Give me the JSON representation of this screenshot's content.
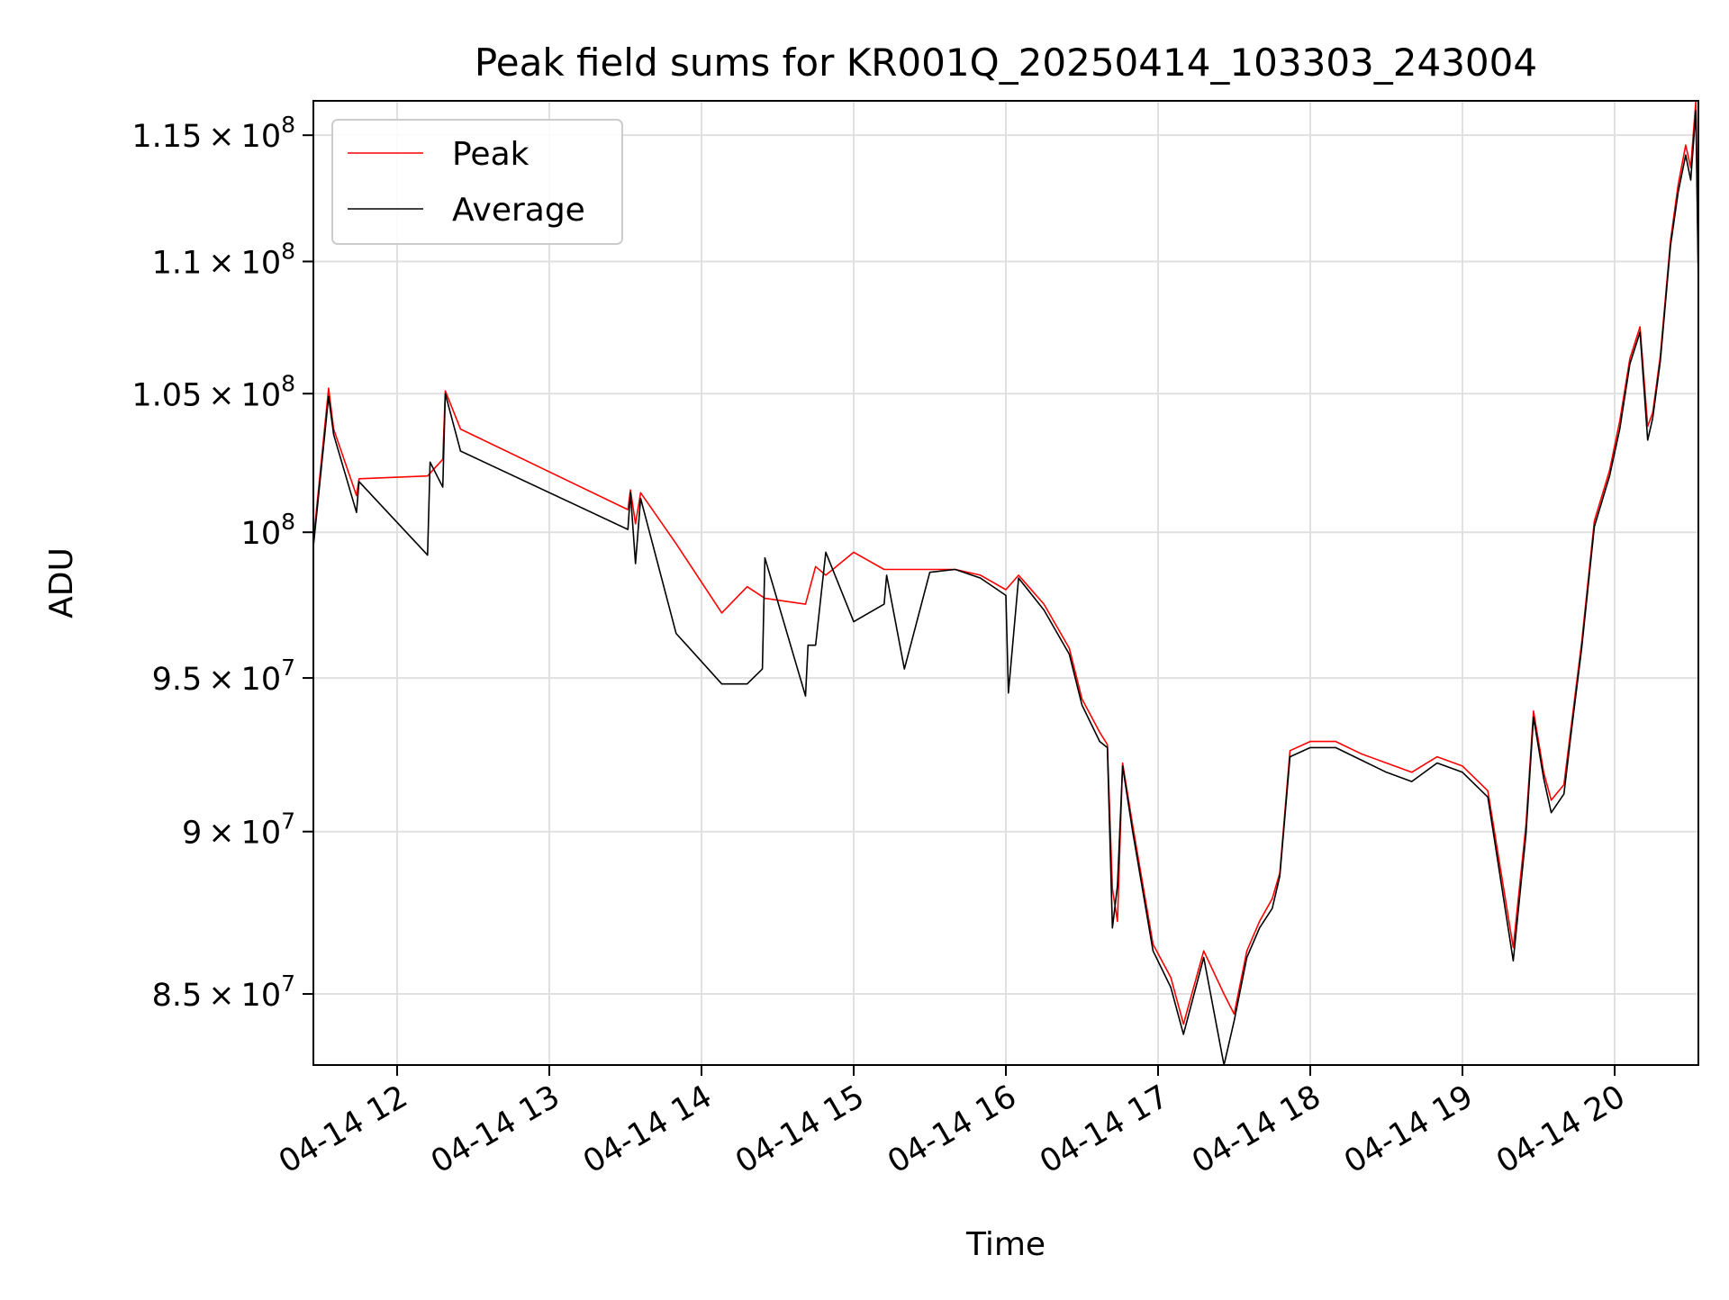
{
  "chart_data": {
    "type": "line",
    "title": "Peak field sums for KR001Q_20250414_103303_243004",
    "xlabel": "Time",
    "ylabel": "ADU",
    "xlim": [
      "2025-04-14 11:27",
      "2025-04-14 20:33"
    ],
    "ylim": [
      82900000,
      116400000
    ],
    "y_scale": "log",
    "grid": true,
    "legend": "top-left",
    "x_tick_labels": [
      "04-14 12",
      "04-14 13",
      "04-14 14",
      "04-14 15",
      "04-14 16",
      "04-14 17",
      "04-14 18",
      "04-14 19",
      "04-14 20"
    ],
    "x_tick_times": [
      "2025-04-14 12:00",
      "2025-04-14 13:00",
      "2025-04-14 14:00",
      "2025-04-14 15:00",
      "2025-04-14 16:00",
      "2025-04-14 17:00",
      "2025-04-14 18:00",
      "2025-04-14 19:00",
      "2025-04-14 20:00"
    ],
    "y_ticks": [
      {
        "value": 85000000,
        "mantissa": "8.5",
        "exponent": "7"
      },
      {
        "value": 90000000,
        "mantissa": "9",
        "exponent": "7"
      },
      {
        "value": 95000000,
        "mantissa": "9.5",
        "exponent": "7"
      },
      {
        "value": 100000000,
        "mantissa": "",
        "exponent": "8"
      },
      {
        "value": 105000000,
        "mantissa": "1.05",
        "exponent": "8"
      },
      {
        "value": 110000000,
        "mantissa": "1.1",
        "exponent": "8"
      },
      {
        "value": 115000000,
        "mantissa": "1.15",
        "exponent": "8"
      }
    ],
    "series": [
      {
        "name": "Peak",
        "color": "#ff0000",
        "x": [
          "2025-04-14 11:27",
          "2025-04-14 11:33",
          "2025-04-14 11:35",
          "2025-04-14 11:44",
          "2025-04-14 11:45",
          "2025-04-14 12:12",
          "2025-04-14 12:18",
          "2025-04-14 12:19",
          "2025-04-14 12:25",
          "2025-04-14 13:31",
          "2025-04-14 13:32",
          "2025-04-14 13:34",
          "2025-04-14 13:36",
          "2025-04-14 13:50",
          "2025-04-14 14:08",
          "2025-04-14 14:18",
          "2025-04-14 14:25",
          "2025-04-14 14:41",
          "2025-04-14 14:45",
          "2025-04-14 14:49",
          "2025-04-14 15:00",
          "2025-04-14 15:12",
          "2025-04-14 15:13",
          "2025-04-14 15:20",
          "2025-04-14 15:30",
          "2025-04-14 15:40",
          "2025-04-14 15:50",
          "2025-04-14 16:00",
          "2025-04-14 16:05",
          "2025-04-14 16:15",
          "2025-04-14 16:25",
          "2025-04-14 16:30",
          "2025-04-14 16:37",
          "2025-04-14 16:40",
          "2025-04-14 16:42",
          "2025-04-14 16:44",
          "2025-04-14 16:46",
          "2025-04-14 16:50",
          "2025-04-14 16:58",
          "2025-04-14 17:05",
          "2025-04-14 17:10",
          "2025-04-14 17:18",
          "2025-04-14 17:26",
          "2025-04-14 17:30",
          "2025-04-14 17:35",
          "2025-04-14 17:40",
          "2025-04-14 17:45",
          "2025-04-14 17:48",
          "2025-04-14 17:52",
          "2025-04-14 18:00",
          "2025-04-14 18:10",
          "2025-04-14 18:20",
          "2025-04-14 18:30",
          "2025-04-14 18:40",
          "2025-04-14 18:50",
          "2025-04-14 19:00",
          "2025-04-14 19:10",
          "2025-04-14 19:20",
          "2025-04-14 19:25",
          "2025-04-14 19:28",
          "2025-04-14 19:32",
          "2025-04-14 19:35",
          "2025-04-14 19:40",
          "2025-04-14 19:43",
          "2025-04-14 19:47",
          "2025-04-14 19:52",
          "2025-04-14 19:58",
          "2025-04-14 20:02",
          "2025-04-14 20:06",
          "2025-04-14 20:10",
          "2025-04-14 20:13",
          "2025-04-14 20:15",
          "2025-04-14 20:18",
          "2025-04-14 20:22",
          "2025-04-14 20:25",
          "2025-04-14 20:28",
          "2025-04-14 20:30",
          "2025-04-14 20:32",
          "2025-04-14 20:33"
        ],
        "y": [
          99700000,
          105200000,
          103700000,
          101300000,
          101900000,
          102000000,
          102600000,
          105100000,
          103700000,
          100800000,
          101500000,
          100300000,
          101400000,
          99600000,
          97200000,
          98100000,
          97700000,
          97500000,
          98800000,
          98500000,
          99300000,
          98700000,
          98700000,
          98700000,
          98700000,
          98700000,
          98500000,
          98000000,
          98500000,
          97500000,
          96000000,
          94300000,
          93200000,
          92800000,
          88200000,
          87200000,
          92200000,
          90200000,
          86500000,
          85500000,
          84100000,
          86300000,
          85000000,
          84400000,
          86300000,
          87200000,
          87900000,
          88700000,
          92600000,
          92900000,
          92900000,
          92500000,
          92200000,
          91900000,
          92400000,
          92100000,
          91300000,
          86400000,
          90200000,
          93900000,
          91900000,
          91000000,
          91500000,
          93500000,
          96200000,
          100400000,
          102200000,
          104000000,
          106300000,
          107500000,
          103800000,
          104300000,
          106400000,
          110800000,
          113000000,
          114600000,
          113700000,
          116400000,
          109400000
        ]
      },
      {
        "name": "Average",
        "color": "#000000",
        "x": [
          "2025-04-14 11:27",
          "2025-04-14 11:33",
          "2025-04-14 11:35",
          "2025-04-14 11:44",
          "2025-04-14 11:45",
          "2025-04-14 12:12",
          "2025-04-14 12:13",
          "2025-04-14 12:18",
          "2025-04-14 12:19",
          "2025-04-14 12:25",
          "2025-04-14 13:31",
          "2025-04-14 13:32",
          "2025-04-14 13:34",
          "2025-04-14 13:36",
          "2025-04-14 13:50",
          "2025-04-14 14:08",
          "2025-04-14 14:18",
          "2025-04-14 14:24",
          "2025-04-14 14:25",
          "2025-04-14 14:41",
          "2025-04-14 14:42",
          "2025-04-14 14:45",
          "2025-04-14 14:49",
          "2025-04-14 15:00",
          "2025-04-14 15:12",
          "2025-04-14 15:13",
          "2025-04-14 15:20",
          "2025-04-14 15:30",
          "2025-04-14 15:40",
          "2025-04-14 15:50",
          "2025-04-14 16:00",
          "2025-04-14 16:01",
          "2025-04-14 16:05",
          "2025-04-14 16:15",
          "2025-04-14 16:25",
          "2025-04-14 16:30",
          "2025-04-14 16:37",
          "2025-04-14 16:40",
          "2025-04-14 16:42",
          "2025-04-14 16:44",
          "2025-04-14 16:46",
          "2025-04-14 16:50",
          "2025-04-14 16:58",
          "2025-04-14 17:05",
          "2025-04-14 17:10",
          "2025-04-14 17:18",
          "2025-04-14 17:26",
          "2025-04-14 17:30",
          "2025-04-14 17:35",
          "2025-04-14 17:40",
          "2025-04-14 17:45",
          "2025-04-14 17:48",
          "2025-04-14 17:52",
          "2025-04-14 18:00",
          "2025-04-14 18:10",
          "2025-04-14 18:20",
          "2025-04-14 18:30",
          "2025-04-14 18:40",
          "2025-04-14 18:50",
          "2025-04-14 19:00",
          "2025-04-14 19:10",
          "2025-04-14 19:20",
          "2025-04-14 19:25",
          "2025-04-14 19:28",
          "2025-04-14 19:32",
          "2025-04-14 19:35",
          "2025-04-14 19:40",
          "2025-04-14 19:43",
          "2025-04-14 19:47",
          "2025-04-14 19:52",
          "2025-04-14 19:58",
          "2025-04-14 20:02",
          "2025-04-14 20:06",
          "2025-04-14 20:10",
          "2025-04-14 20:13",
          "2025-04-14 20:15",
          "2025-04-14 20:18",
          "2025-04-14 20:22",
          "2025-04-14 20:25",
          "2025-04-14 20:28",
          "2025-04-14 20:30",
          "2025-04-14 20:32",
          "2025-04-14 20:33"
        ],
        "y": [
          99500000,
          104900000,
          103500000,
          100700000,
          101800000,
          99200000,
          102500000,
          101600000,
          105000000,
          102900000,
          100100000,
          101400000,
          98900000,
          101200000,
          96500000,
          94800000,
          94800000,
          95300000,
          99100000,
          94400000,
          96100000,
          96100000,
          99300000,
          96900000,
          97500000,
          98500000,
          95300000,
          98600000,
          98700000,
          98400000,
          97800000,
          94500000,
          98400000,
          97300000,
          95800000,
          94100000,
          92900000,
          92700000,
          87000000,
          88300000,
          92100000,
          90000000,
          86300000,
          85200000,
          83800000,
          86100000,
          82900000,
          84200000,
          86100000,
          87000000,
          87600000,
          88600000,
          92400000,
          92700000,
          92700000,
          92300000,
          91900000,
          91600000,
          92200000,
          91900000,
          91100000,
          86000000,
          89900000,
          93700000,
          91700000,
          90600000,
          91200000,
          93300000,
          96000000,
          100200000,
          102000000,
          103700000,
          106100000,
          107300000,
          103300000,
          104100000,
          106200000,
          110600000,
          112700000,
          114200000,
          113200000,
          116000000,
          109100000
        ]
      }
    ]
  }
}
